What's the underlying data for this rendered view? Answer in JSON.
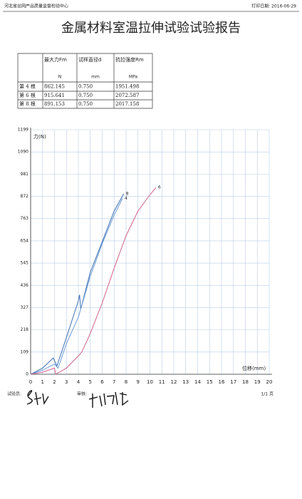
{
  "header": {
    "org": "河北省丝网产品质量监督检验中心",
    "print_date": "打印日期: 2016-06-29"
  },
  "title": "金属材料室温拉伸试验试验报告",
  "table": {
    "columns": [
      "最大力Fm",
      "试样直径d",
      "抗拉强度Rm"
    ],
    "units": [
      "N",
      "mm",
      "MPa"
    ],
    "rows": [
      [
        "第 4 根",
        "862.145",
        "0.750",
        "1951.498"
      ],
      [
        "第 6 根",
        "915.641",
        "0.750",
        "2072.587"
      ],
      [
        "第 8 根",
        "891.153",
        "0.750",
        "2017.158"
      ]
    ]
  },
  "chart_data": {
    "type": "line",
    "y_label": "力(N)",
    "x_label": "位移(mm)",
    "xlim": [
      0,
      20
    ],
    "xticks": [
      0,
      1,
      2,
      3,
      4,
      5,
      6,
      7,
      8,
      9,
      10,
      11,
      12,
      13,
      14,
      15,
      16,
      17,
      18,
      19,
      20
    ],
    "ylim": [
      0,
      1199
    ],
    "yticks": [
      0,
      109,
      218,
      327,
      436,
      545,
      654,
      763,
      872,
      981,
      1090,
      1199
    ],
    "grid": true,
    "series": [
      {
        "name": "8",
        "color": "#3d6fb0",
        "x": [
          0,
          1,
          1.9,
          2.2,
          3,
          4,
          4.1,
          4.2,
          5,
          6,
          7,
          7.8
        ],
        "values": [
          0,
          30,
          80,
          40,
          180,
          360,
          390,
          320,
          500,
          650,
          800,
          885
        ]
      },
      {
        "name": "4",
        "color": "#6b9bd6",
        "x": [
          0,
          1,
          2,
          2.3,
          3,
          4,
          5,
          6,
          7,
          7.7
        ],
        "values": [
          0,
          20,
          50,
          30,
          150,
          280,
          480,
          640,
          780,
          862
        ]
      },
      {
        "name": "6",
        "color": "#d0608a",
        "x": [
          0,
          1,
          2,
          2.1,
          3,
          4,
          4.3,
          5,
          6,
          7,
          8,
          9,
          10,
          10.5
        ],
        "values": [
          0,
          10,
          30,
          0,
          30,
          90,
          110,
          200,
          350,
          520,
          680,
          800,
          880,
          915
        ]
      }
    ]
  },
  "footer": {
    "tester": "试验员:",
    "reviewer": "审核:",
    "page": "1/1 页"
  }
}
